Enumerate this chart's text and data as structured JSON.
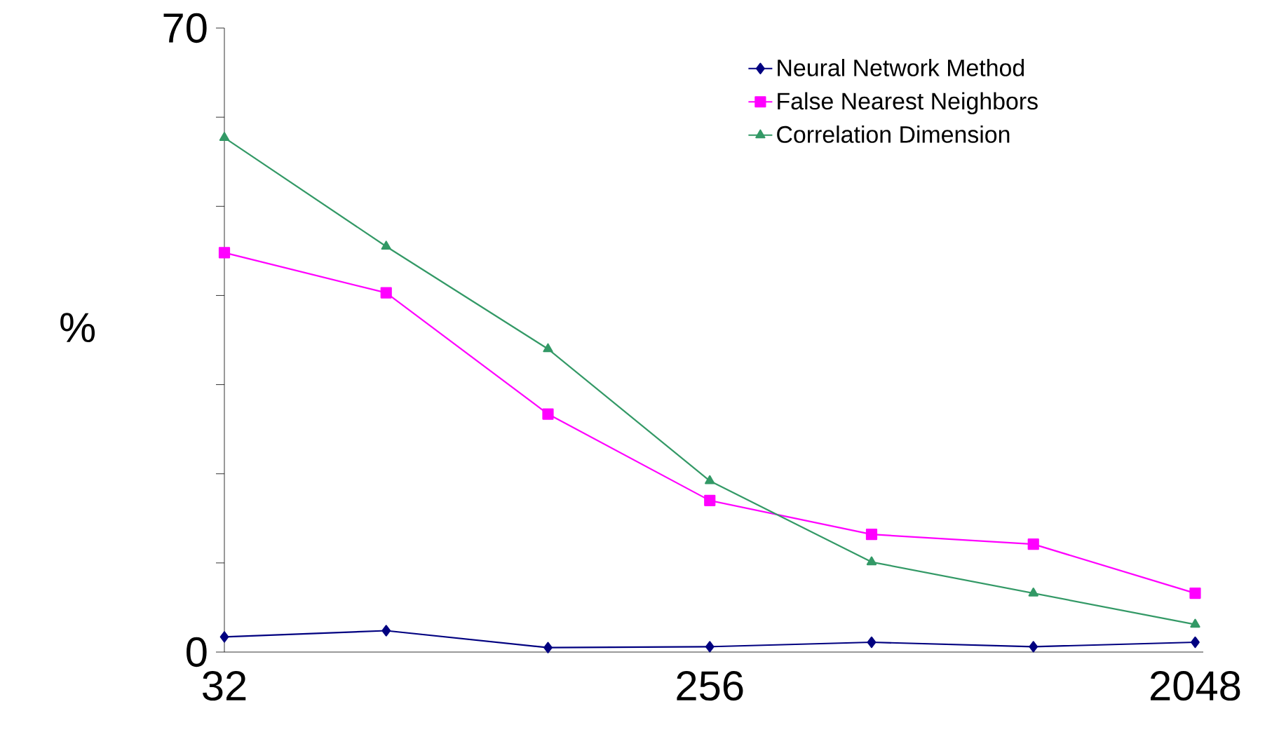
{
  "chart_data": {
    "type": "line",
    "ylabel": "%",
    "categories": [
      "32",
      null,
      null,
      "256",
      null,
      null,
      "2048"
    ],
    "ylim": [
      0,
      70
    ],
    "yticks": [
      0,
      {
        "value": 10,
        "label": null
      },
      {
        "value": 20,
        "label": null
      },
      {
        "value": 30,
        "label": null
      },
      {
        "value": 40,
        "label": null
      },
      {
        "value": 50,
        "label": null
      },
      {
        "value": 60,
        "label": null
      },
      70
    ],
    "grid": false,
    "legend": "top right",
    "line_style": "solid",
    "series": [
      {
        "name": "Neural Network Method",
        "color": "#000080",
        "marker": "diamond",
        "values": [
          1.7,
          2.4,
          0.5,
          0.6,
          1.1,
          0.6,
          1.1
        ]
      },
      {
        "name": "False Nearest Neighbors",
        "color": "#ff00ff",
        "marker": "square",
        "values": [
          44.8,
          40.3,
          26.7,
          17.0,
          13.2,
          12.1,
          6.6
        ]
      },
      {
        "name": "Correlation Dimension",
        "color": "#339966",
        "marker": "triangle",
        "values": [
          57.7,
          45.5,
          34.0,
          19.2,
          10.1,
          6.6,
          3.1
        ]
      }
    ]
  }
}
